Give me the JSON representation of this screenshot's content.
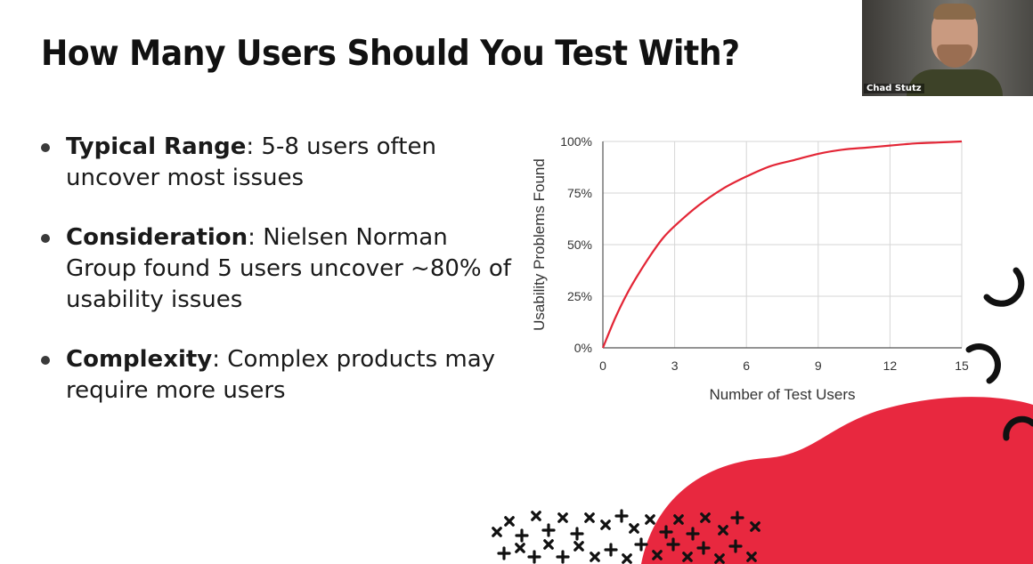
{
  "slide": {
    "title": "How Many Users Should You Test With?",
    "bullets": [
      {
        "label": "Typical Range",
        "text": ": 5-8 users often uncover most issues"
      },
      {
        "label": "Consideration",
        "text": ": Nielsen Norman Group found 5 users uncover ~80% of usability issues"
      },
      {
        "label": "Complexity",
        "text": ": Complex products may require more users"
      }
    ]
  },
  "chart_data": {
    "type": "line",
    "xlabel": "Number of Test Users",
    "ylabel": "Usability Problems Found",
    "xlim": [
      0,
      15
    ],
    "ylim": [
      0,
      100
    ],
    "x_ticks": [
      "0",
      "3",
      "6",
      "9",
      "12",
      "15"
    ],
    "y_ticks": [
      "0%",
      "25%",
      "50%",
      "75%",
      "100%"
    ],
    "grid": true,
    "series": [
      {
        "color": "#e32636",
        "x": [
          0,
          0.5,
          1,
          1.5,
          2,
          2.5,
          3,
          4,
          5,
          6,
          7,
          8,
          9,
          10,
          11,
          12,
          13,
          14,
          15
        ],
        "y": [
          0,
          14,
          26,
          36,
          45,
          53,
          59,
          69,
          77,
          83,
          88,
          91,
          94,
          96,
          97,
          98,
          99,
          99.5,
          100
        ]
      }
    ]
  },
  "webcam": {
    "name": "Chad Stutz"
  },
  "colors": {
    "accent_red": "#e8283f",
    "decor_black": "#111111"
  }
}
